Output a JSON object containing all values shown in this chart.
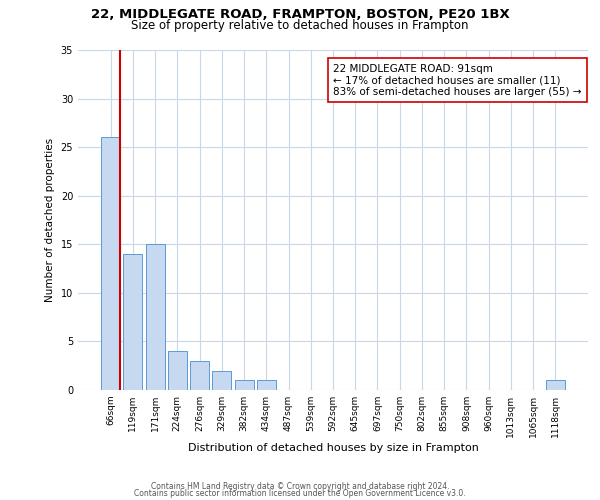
{
  "title1": "22, MIDDLEGATE ROAD, FRAMPTON, BOSTON, PE20 1BX",
  "title2": "Size of property relative to detached houses in Frampton",
  "xlabel": "Distribution of detached houses by size in Frampton",
  "ylabel": "Number of detached properties",
  "bar_labels": [
    "66sqm",
    "119sqm",
    "171sqm",
    "224sqm",
    "276sqm",
    "329sqm",
    "382sqm",
    "434sqm",
    "487sqm",
    "539sqm",
    "592sqm",
    "645sqm",
    "697sqm",
    "750sqm",
    "802sqm",
    "855sqm",
    "908sqm",
    "960sqm",
    "1013sqm",
    "1065sqm",
    "1118sqm"
  ],
  "bar_values": [
    26,
    14,
    15,
    4,
    3,
    2,
    1,
    1,
    0,
    0,
    0,
    0,
    0,
    0,
    0,
    0,
    0,
    0,
    0,
    0,
    1
  ],
  "bar_color": "#c6d9f1",
  "bar_edge_color": "#5b9bd5",
  "vline_color": "#cc0000",
  "annotation_title": "22 MIDDLEGATE ROAD: 91sqm",
  "annotation_line1": "← 17% of detached houses are smaller (11)",
  "annotation_line2": "83% of semi-detached houses are larger (55) →",
  "annotation_box_color": "#ffffff",
  "annotation_box_edge": "#cc0000",
  "ylim": [
    0,
    35
  ],
  "yticks": [
    0,
    5,
    10,
    15,
    20,
    25,
    30,
    35
  ],
  "footer1": "Contains HM Land Registry data © Crown copyright and database right 2024.",
  "footer2": "Contains public sector information licensed under the Open Government Licence v3.0.",
  "bg_color": "#ffffff",
  "grid_color": "#c8d8e8",
  "title1_fontsize": 9.5,
  "title2_fontsize": 8.5,
  "ylabel_fontsize": 7.5,
  "xlabel_fontsize": 8,
  "tick_fontsize": 6.5,
  "footer_fontsize": 5.5
}
